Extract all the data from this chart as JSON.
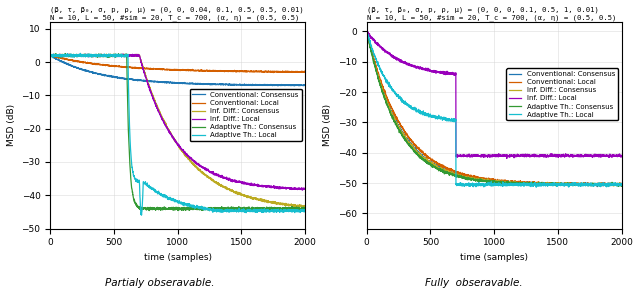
{
  "left_title1": "(β, τ, β₀, σ, p, ρ, μ) = (0, 0, 0.04, 0.1, 0.5, 0.5, 0.01)",
  "left_title2": "N = 10, L = 50, #sim = 20, T_c = 700, (α, η) = (0.5, 0.5)",
  "right_title1": "(β, τ, β₀, σ, p, ρ, μ) = (0, 0, 0, 0.1, 0.5, 1, 0.01)",
  "right_title2": "N = 10, L = 50, #sim = 20, T_c = 700, (α, η) = (0.5, 0.5)",
  "xlabel": "time (samples)",
  "ylabel": "MSD (dB)",
  "left_caption": "Partialy obseravable.",
  "right_caption": "Fully  obseravable.",
  "legend_labels": [
    "Conventional: Consensus",
    "Conventional: Local",
    "Inf. Diff.: Consensus",
    "Inf. Diff.: Local",
    "Adaptive Th.: Consensus",
    "Adaptive Th.: Local"
  ],
  "colors": {
    "conv_consensus": "#1f77b4",
    "conv_local": "#d45f00",
    "inf_diff_consensus": "#bcab22",
    "inf_diff_local": "#9900bb",
    "adaptive_consensus": "#339933",
    "adaptive_local": "#17becf"
  },
  "T_c": 700,
  "N_samples": 2000,
  "left_ylim": [
    -50,
    12
  ],
  "left_yticks": [
    10,
    0,
    -10,
    -20,
    -30,
    -40,
    -50
  ],
  "right_ylim": [
    -65,
    3
  ],
  "right_yticks": [
    0,
    -10,
    -20,
    -30,
    -40,
    -50,
    -60
  ]
}
